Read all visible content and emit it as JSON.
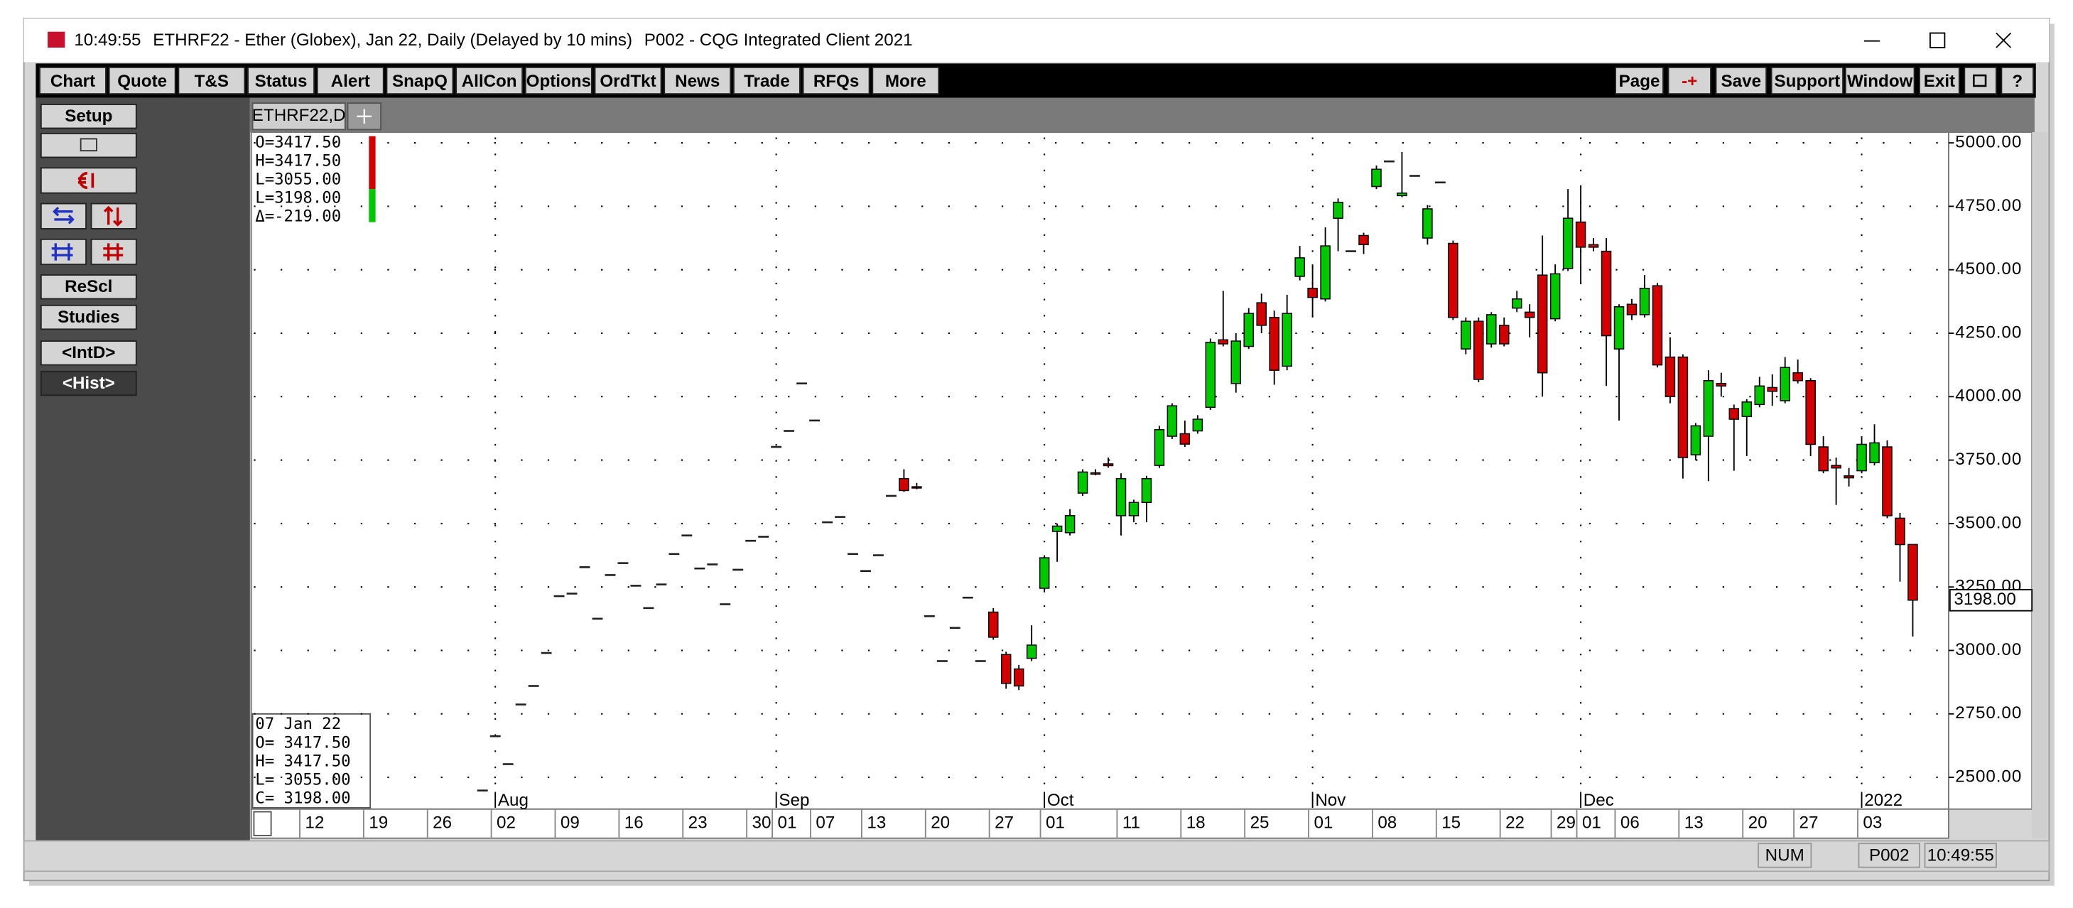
{
  "window": {
    "time": "10:49:55",
    "title": "ETHRF22 - Ether (Globex), Jan 22, Daily (Delayed by 10 mins)",
    "workspace": "P002 - CQG Integrated Client 2021"
  },
  "toolbar": [
    "Chart",
    "Quote",
    "T&S",
    "Status",
    "Alert",
    "SnapQ",
    "AllCon",
    "Options",
    "OrdTkt",
    "News",
    "Trade",
    "RFQs",
    "More"
  ],
  "toolbar_right": [
    "Page",
    "-+",
    "Save",
    "Support",
    "Window",
    "Exit"
  ],
  "help": "?",
  "side_buttons": [
    "Setup",
    "ReScl",
    "Studies",
    "<IntD>",
    "<Hist>"
  ],
  "tabs": [
    "ETHRF22,D"
  ],
  "status": [
    "NUM",
    "P002",
    "10:49:55"
  ],
  "chart_data": {
    "type": "candlestick",
    "categories": [
      "12",
      null,
      null,
      null,
      null,
      "19",
      null,
      null,
      null,
      null,
      "26",
      null,
      null,
      null,
      null,
      "02",
      null,
      null,
      null,
      null,
      "09",
      null,
      null,
      null,
      null,
      "16",
      null,
      null,
      null,
      null,
      "23",
      null,
      null,
      null,
      null,
      "30",
      null,
      "01",
      null,
      null,
      "07",
      null,
      null,
      null,
      "13",
      null,
      null,
      null,
      null,
      "20",
      null,
      null,
      null,
      null,
      "27",
      null,
      null,
      null,
      "01",
      null,
      null,
      null,
      null,
      null,
      "11",
      null,
      null,
      null,
      null,
      "18",
      null,
      null,
      null,
      null,
      "25",
      null,
      null,
      null,
      null,
      "01",
      null,
      null,
      null,
      null,
      "08",
      null,
      null,
      null,
      null,
      "15",
      null,
      null,
      null,
      null,
      "22",
      null,
      null,
      null,
      "29",
      null,
      "01",
      null,
      null,
      "06",
      null,
      null,
      null,
      null,
      "13",
      null,
      null,
      null,
      null,
      "20",
      null,
      null,
      null,
      "27",
      null,
      null,
      null,
      null,
      "03",
      null,
      null,
      null,
      null
    ],
    "months": [
      null,
      null,
      null,
      null,
      null,
      null,
      null,
      null,
      null,
      null,
      null,
      null,
      null,
      null,
      null,
      "Aug",
      null,
      null,
      null,
      null,
      null,
      null,
      null,
      null,
      null,
      null,
      null,
      null,
      null,
      null,
      null,
      null,
      null,
      null,
      null,
      null,
      null,
      "Sep",
      null,
      null,
      null,
      null,
      null,
      null,
      null,
      null,
      null,
      null,
      null,
      null,
      null,
      null,
      null,
      null,
      null,
      null,
      null,
      null,
      "Oct",
      null,
      null,
      null,
      null,
      null,
      null,
      null,
      null,
      null,
      null,
      null,
      null,
      null,
      null,
      null,
      null,
      null,
      null,
      null,
      null,
      "Nov",
      null,
      null,
      null,
      null,
      null,
      null,
      null,
      null,
      null,
      null,
      null,
      null,
      null,
      null,
      null,
      null,
      null,
      null,
      null,
      null,
      "Dec",
      null,
      null,
      null,
      null,
      null,
      null,
      null,
      null,
      null,
      null,
      null,
      null,
      null,
      null,
      null,
      null,
      null,
      null,
      null,
      null,
      null,
      "2022",
      null,
      null,
      null,
      null
    ],
    "open": [
      null,
      null,
      null,
      null,
      null,
      null,
      null,
      null,
      null,
      null,
      null,
      null,
      null,
      null,
      2448,
      2662,
      2552,
      2787,
      2860,
      2990,
      3214,
      3224,
      3328,
      3125,
      3297,
      3344,
      3255,
      3167,
      3260,
      3380,
      3453,
      3323,
      3339,
      3182,
      3318,
      3432,
      3448,
      3802,
      3865,
      4052,
      3906,
      3505,
      3526,
      3380,
      3313,
      3375,
      3609,
      3677,
      3645,
      3135,
      2958,
      3089,
      3208,
      2958,
      3151,
      2984,
      2927,
      2969,
      3245,
      3469,
      3464,
      3620,
      3700,
      3735,
      3531,
      3531,
      3583,
      3729,
      3844,
      3854,
      3865,
      3958,
      4224,
      4052,
      4198,
      4370,
      4312,
      4120,
      4474,
      4427,
      4385,
      4703,
      4573,
      4635,
      4828,
      4927,
      4792,
      4870,
      4625,
      4844,
      4604,
      4188,
      4297,
      4208,
      4281,
      4349,
      4333,
      4479,
      4307,
      4505,
      4688,
      4599,
      4573,
      4188,
      4364,
      4323,
      4437,
      4156,
      4156,
      3771,
      3844,
      4052,
      3953,
      3922,
      3969,
      4036,
      3984,
      4094,
      4063,
      3802,
      3729,
      3688,
      3708,
      3740,
      3802,
      3521,
      3417.5
    ],
    "high": [
      null,
      null,
      null,
      null,
      null,
      null,
      null,
      null,
      null,
      null,
      null,
      null,
      null,
      null,
      2448,
      2662,
      2552,
      2787,
      2860,
      2990,
      3214,
      3224,
      3328,
      3125,
      3297,
      3344,
      3255,
      3167,
      3260,
      3380,
      3453,
      3323,
      3339,
      3182,
      3318,
      3432,
      3448,
      3802,
      3865,
      4052,
      3906,
      3505,
      3526,
      3380,
      3313,
      3375,
      3609,
      3714,
      3660,
      3135,
      2958,
      3089,
      3208,
      2958,
      3167,
      2995,
      2943,
      3099,
      3375,
      3500,
      3557,
      3714,
      3714,
      3760,
      3698,
      3594,
      3688,
      3885,
      3974,
      3906,
      3927,
      4229,
      4417,
      4250,
      4349,
      4406,
      4339,
      4401,
      4594,
      4521,
      4667,
      4781,
      4573,
      4646,
      4911,
      4927,
      4964,
      4870,
      4755,
      4844,
      4615,
      4312,
      4312,
      4333,
      4312,
      4417,
      4364,
      4635,
      4521,
      4818,
      4833,
      4625,
      4625,
      4364,
      4385,
      4479,
      4448,
      4234,
      4167,
      3896,
      4104,
      4094,
      3969,
      3990,
      4078,
      4088,
      4156,
      4146,
      4073,
      3844,
      3760,
      3719,
      3844,
      3891,
      3828,
      3542,
      3417.5
    ],
    "low": [
      null,
      null,
      null,
      null,
      null,
      null,
      null,
      null,
      null,
      null,
      null,
      null,
      null,
      null,
      2448,
      2662,
      2552,
      2787,
      2860,
      2990,
      3214,
      3224,
      3328,
      3125,
      3297,
      3344,
      3255,
      3167,
      3260,
      3380,
      3453,
      3323,
      3339,
      3182,
      3318,
      3432,
      3448,
      3802,
      3865,
      4052,
      3906,
      3505,
      3526,
      3380,
      3313,
      3375,
      3609,
      3625,
      3635,
      3135,
      2958,
      3089,
      3208,
      2958,
      3042,
      2849,
      2844,
      2958,
      3229,
      3349,
      3453,
      3609,
      3690,
      3720,
      3453,
      3505,
      3505,
      3719,
      3833,
      3802,
      3854,
      3948,
      4198,
      4016,
      4188,
      4250,
      4047,
      4104,
      4458,
      4312,
      4375,
      4573,
      4573,
      4562,
      4818,
      4927,
      4786,
      4870,
      4599,
      4844,
      4302,
      4167,
      4057,
      4193,
      4198,
      4333,
      4234,
      4000,
      4297,
      4495,
      4443,
      4573,
      4042,
      3906,
      4302,
      4312,
      4115,
      3974,
      3677,
      3750,
      3667,
      4000,
      3708,
      3766,
      3958,
      3964,
      3974,
      4052,
      3766,
      3698,
      3573,
      3646,
      3698,
      3729,
      3521,
      3271,
      3055
    ],
    "close": [
      null,
      null,
      null,
      null,
      null,
      null,
      null,
      null,
      null,
      null,
      null,
      null,
      null,
      null,
      2448,
      2662,
      2552,
      2787,
      2860,
      2990,
      3214,
      3224,
      3328,
      3125,
      3297,
      3344,
      3255,
      3167,
      3260,
      3380,
      3453,
      3323,
      3339,
      3182,
      3318,
      3432,
      3448,
      3802,
      3865,
      4052,
      3906,
      3505,
      3526,
      3380,
      3313,
      3375,
      3609,
      3630,
      3640,
      3135,
      2958,
      3089,
      3208,
      2958,
      3052,
      2870,
      2860,
      3021,
      3365,
      3490,
      3531,
      3703,
      3695,
      3728,
      3677,
      3583,
      3677,
      3870,
      3964,
      3813,
      3911,
      4214,
      4208,
      4219,
      4328,
      4281,
      4104,
      4328,
      4547,
      4391,
      4594,
      4766,
      4573,
      4599,
      4896,
      4927,
      4802,
      4870,
      4740,
      4844,
      4312,
      4297,
      4068,
      4323,
      4208,
      4385,
      4312,
      4094,
      4484,
      4703,
      4589,
      4589,
      4240,
      4354,
      4323,
      4427,
      4125,
      4000,
      3760,
      3885,
      4063,
      4042,
      3911,
      3979,
      4042,
      4021,
      4115,
      4063,
      3812,
      3708,
      3719,
      3680,
      3812,
      3818,
      3531,
      3417,
      3198
    ],
    "up_color": "#00c800",
    "down_color": "#d40000",
    "flat_color": "#202020",
    "ylim": [
      2380,
      5042
    ],
    "yticks": [
      {
        "value": 2500,
        "label": "2500.00"
      },
      {
        "value": 2750,
        "label": "2750.00"
      },
      {
        "value": 3000,
        "label": "3000.00"
      },
      {
        "value": 3250,
        "label": "3250.00"
      },
      {
        "value": 3500,
        "label": "3500.00"
      },
      {
        "value": 3750,
        "label": "3750.00"
      },
      {
        "value": 4000,
        "label": "4000.00"
      },
      {
        "value": 4250,
        "label": "4250.00"
      },
      {
        "value": 4500,
        "label": "4500.00"
      },
      {
        "value": 4750,
        "label": "4750.00"
      },
      {
        "value": 5000,
        "label": "5000.00"
      }
    ],
    "grid": true,
    "last": {
      "value": 3198,
      "label": "3198.00"
    },
    "legend": [
      "O=3417.50",
      "H=3417.50",
      "L=3055.00",
      "L=3198.00",
      "Δ=-219.00"
    ],
    "cursor_box": [
      "07 Jan 22",
      "O= 3417.50",
      "H= 3417.50",
      "L= 3055.00",
      "C= 3198.00"
    ]
  }
}
